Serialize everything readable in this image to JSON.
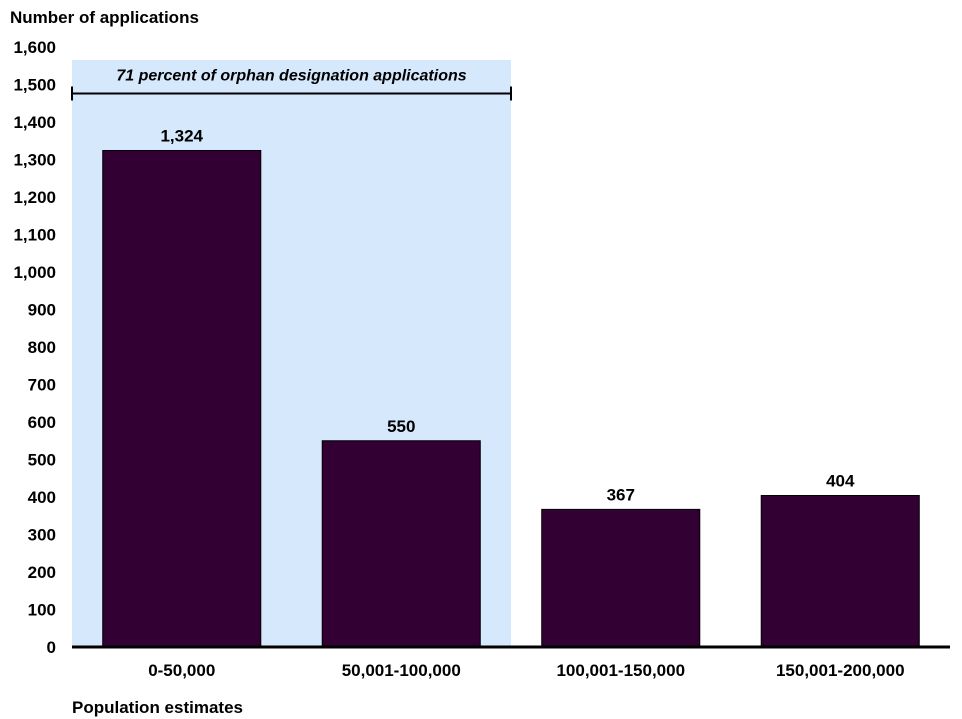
{
  "chart_data": {
    "type": "bar",
    "ylabel": "Number of applications",
    "xlabel": "Population estimates",
    "categories": [
      "0-50,000",
      "50,001-100,000",
      "100,001-150,000",
      "150,001-200,000"
    ],
    "values": [
      1324,
      550,
      367,
      404
    ],
    "value_labels": [
      "1,324",
      "550",
      "367",
      "404"
    ],
    "ylim": [
      0,
      1600
    ],
    "yticks": [
      0,
      100,
      200,
      300,
      400,
      500,
      600,
      700,
      800,
      900,
      1000,
      1100,
      1200,
      1300,
      1400,
      1500,
      1600
    ],
    "ytick_labels": [
      "0",
      "100",
      "200",
      "300",
      "400",
      "500",
      "600",
      "700",
      "800",
      "900",
      "1,000",
      "1,100",
      "1,200",
      "1,300",
      "1,400",
      "1,500",
      "1,600"
    ],
    "grid": false,
    "highlight": {
      "label": "71 percent of orphan designation applications",
      "categories": [
        "0-50,000",
        "50,001-100,000"
      ],
      "bracket_value": 1500
    },
    "colors": {
      "bar": "#330033",
      "highlight": "#d6e8fc",
      "axis": "#000000"
    }
  }
}
